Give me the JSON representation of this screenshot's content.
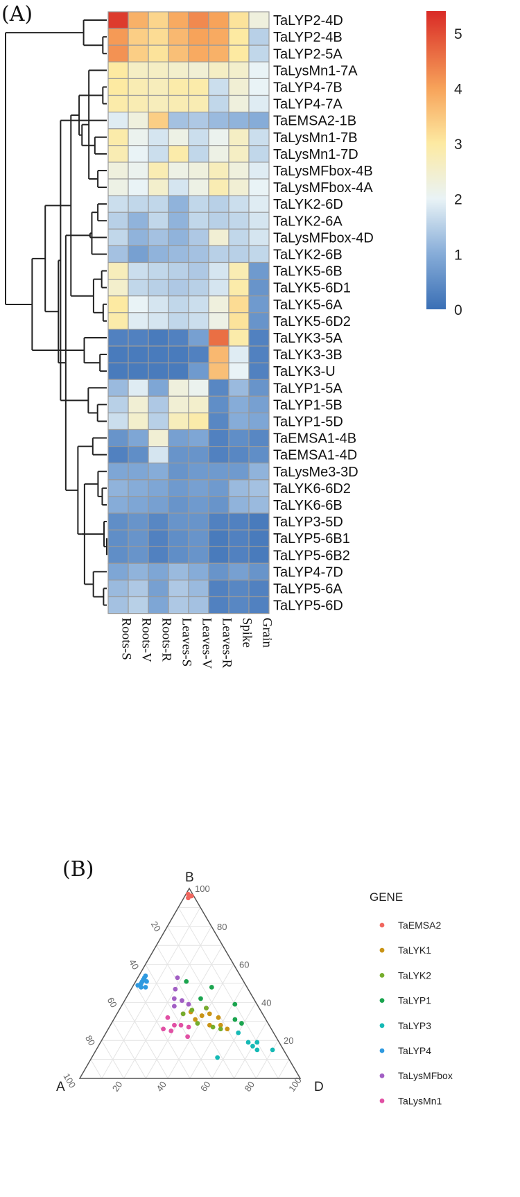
{
  "panels": {
    "a_label": "(A)",
    "b_label": "(B)"
  },
  "chart_data": [
    {
      "type": "heatmap",
      "title": "",
      "columns": [
        "Roots-S",
        "Roots-V",
        "Roots-R",
        "Leaves-S",
        "Leaves-V",
        "Leaves-R",
        "Spike",
        "Grain"
      ],
      "rows": [
        "TaLYP2-4D",
        "TaLYP2-4B",
        "TaLYP2-5A",
        "TaLysMn1-7A",
        "TaLYP4-7B",
        "TaLYP4-7A",
        "TaEMSA2-1B",
        "TaLysMn1-7B",
        "TaLysMn1-7D",
        "TaLysMFbox-4B",
        "TaLysMFbox-4A",
        "TaLYK2-6D",
        "TaLYK2-6A",
        "TaLysMFbox-4D",
        "TaLYK2-6B",
        "TaLYK5-6B",
        "TaLYK5-6D1",
        "TaLYK5-6A",
        "TaLYK5-6D2",
        "TaLYK3-5A",
        "TaLYK3-3B",
        "TaLYK3-U",
        "TaLYP1-5A",
        "TaLYP1-5B",
        "TaLYP1-5D",
        "TaEMSA1-4B",
        "TaEMSA1-4D",
        "TaLysMe3-3D",
        "TaLYK6-6D2",
        "TaLYK6-6B",
        "TaLYP3-5D",
        "TaLYP5-6B1",
        "TaLYP5-6B2",
        "TaLYP4-7D",
        "TaLYP5-6A",
        "TaLYP5-6D"
      ],
      "values": [
        [
          5.2,
          3.8,
          3.3,
          3.9,
          4.3,
          4.0,
          3.1,
          2.3
        ],
        [
          4.1,
          3.4,
          3.2,
          3.7,
          4.0,
          3.9,
          3.0,
          1.5
        ],
        [
          4.2,
          3.4,
          3.1,
          3.6,
          3.9,
          3.8,
          3.0,
          1.6
        ],
        [
          3.0,
          2.6,
          2.6,
          2.5,
          2.4,
          2.6,
          2.5,
          2.0
        ],
        [
          3.0,
          2.8,
          2.7,
          2.9,
          2.9,
          1.7,
          2.4,
          2.0
        ],
        [
          2.9,
          2.8,
          2.7,
          2.8,
          2.8,
          1.6,
          2.3,
          1.9
        ],
        [
          1.9,
          2.3,
          3.4,
          1.3,
          1.4,
          1.2,
          1.1,
          1.0
        ],
        [
          2.9,
          2.1,
          1.8,
          2.2,
          1.7,
          2.1,
          2.6,
          1.7
        ],
        [
          2.8,
          2.0,
          1.7,
          2.9,
          1.6,
          2.2,
          2.6,
          1.6
        ],
        [
          2.3,
          2.1,
          2.8,
          2.2,
          2.3,
          2.7,
          2.3,
          1.9
        ],
        [
          2.2,
          2.0,
          2.5,
          1.8,
          2.2,
          2.8,
          2.4,
          2.0
        ],
        [
          1.7,
          1.6,
          1.6,
          1.1,
          1.6,
          1.5,
          1.7,
          1.9
        ],
        [
          1.5,
          1.1,
          1.6,
          1.1,
          1.6,
          1.5,
          1.6,
          1.8
        ],
        [
          1.6,
          1.1,
          1.3,
          1.1,
          1.4,
          2.4,
          1.6,
          1.8
        ],
        [
          1.3,
          0.8,
          1.1,
          1.2,
          1.3,
          1.5,
          1.5,
          1.6
        ],
        [
          2.7,
          1.7,
          1.6,
          1.5,
          1.4,
          1.8,
          2.8,
          0.7
        ],
        [
          2.5,
          1.6,
          1.5,
          1.4,
          1.5,
          1.8,
          2.9,
          0.6
        ],
        [
          3.0,
          2.0,
          1.8,
          1.6,
          1.7,
          2.3,
          3.2,
          0.7
        ],
        [
          2.9,
          1.9,
          1.8,
          1.6,
          1.7,
          2.2,
          3.1,
          0.6
        ],
        [
          0.3,
          0.3,
          0.2,
          0.3,
          0.8,
          4.6,
          2.9,
          0.3
        ],
        [
          0.2,
          0.2,
          0.2,
          0.2,
          0.3,
          3.7,
          1.9,
          0.3
        ],
        [
          0.2,
          0.2,
          0.2,
          0.2,
          0.7,
          3.6,
          2.0,
          0.3
        ],
        [
          1.2,
          1.9,
          0.9,
          2.3,
          2.1,
          0.4,
          1.2,
          0.6
        ],
        [
          1.5,
          2.4,
          1.4,
          2.4,
          2.5,
          0.5,
          1.0,
          0.8
        ],
        [
          1.7,
          2.5,
          1.5,
          2.7,
          2.9,
          0.4,
          1.0,
          0.9
        ],
        [
          0.6,
          0.9,
          2.4,
          0.8,
          0.9,
          0.3,
          0.5,
          0.4
        ],
        [
          0.3,
          0.5,
          1.8,
          0.6,
          0.6,
          0.3,
          0.4,
          0.5
        ],
        [
          0.9,
          0.9,
          1.0,
          0.6,
          0.7,
          0.7,
          0.7,
          1.1
        ],
        [
          1.1,
          1.0,
          0.9,
          0.7,
          0.8,
          0.7,
          1.2,
          1.3
        ],
        [
          1.0,
          0.9,
          0.8,
          0.6,
          0.7,
          0.6,
          1.1,
          1.2
        ],
        [
          0.5,
          0.6,
          0.4,
          0.6,
          0.6,
          0.3,
          0.3,
          0.2
        ],
        [
          0.5,
          0.6,
          0.3,
          0.5,
          0.6,
          0.2,
          0.3,
          0.2
        ],
        [
          0.5,
          0.6,
          0.3,
          0.5,
          0.6,
          0.2,
          0.3,
          0.2
        ],
        [
          0.9,
          1.1,
          0.9,
          1.2,
          1.0,
          0.6,
          0.8,
          0.6
        ],
        [
          1.2,
          1.4,
          0.8,
          1.4,
          1.2,
          0.3,
          0.4,
          0.3
        ],
        [
          1.3,
          1.5,
          0.9,
          1.4,
          1.3,
          0.3,
          0.4,
          0.3
        ]
      ],
      "color_scale": {
        "min": 0,
        "max": 5.4,
        "ticks": [
          0,
          1,
          2,
          3,
          4,
          5
        ],
        "stops": [
          {
            "value": 0,
            "color": "#3a6fb5"
          },
          {
            "value": 1,
            "color": "#86acd8"
          },
          {
            "value": 2,
            "color": "#e9f3f6"
          },
          {
            "value": 3,
            "color": "#fdeaa2"
          },
          {
            "value": 4,
            "color": "#f7a35a"
          },
          {
            "value": 5.4,
            "color": "#d92a26"
          }
        ]
      },
      "dendrogram": "rows"
    },
    {
      "type": "scatter",
      "subtype": "ternary",
      "axes": {
        "top": "B",
        "left": "A",
        "right": "D"
      },
      "ticks": [
        20,
        40,
        60,
        80,
        100
      ],
      "legend_title": "GENE",
      "legend": [
        {
          "name": "TaEMSA2",
          "color": "#f1675f"
        },
        {
          "name": "TaLYK1",
          "color": "#c99416"
        },
        {
          "name": "TaLYK2",
          "color": "#76ad2c"
        },
        {
          "name": "TaLYP1",
          "color": "#1aa44e"
        },
        {
          "name": "TaLYP3",
          "color": "#15b9b5"
        },
        {
          "name": "TaLYP4",
          "color": "#2f9ae0"
        },
        {
          "name": "TaLysMFbox",
          "color": "#a25fc4"
        },
        {
          "name": "TaLysMn1",
          "color": "#e150a4"
        }
      ],
      "points": [
        {
          "gene": "TaEMSA2",
          "A": 2,
          "B": 97,
          "D": 1
        },
        {
          "gene": "TaEMSA2",
          "A": 3,
          "B": 95,
          "D": 2
        },
        {
          "gene": "TaEMSA2",
          "A": 1,
          "B": 96,
          "D": 3
        },
        {
          "gene": "TaLYP4",
          "A": 49,
          "B": 49,
          "D": 2
        },
        {
          "gene": "TaLYP4",
          "A": 47,
          "B": 50,
          "D": 3
        },
        {
          "gene": "TaLYP4",
          "A": 46,
          "B": 51,
          "D": 3
        },
        {
          "gene": "TaLYP4",
          "A": 44,
          "B": 53,
          "D": 3
        },
        {
          "gene": "TaLYP4",
          "A": 45,
          "B": 52,
          "D": 3
        },
        {
          "gene": "TaLYP4",
          "A": 48,
          "B": 48,
          "D": 4
        },
        {
          "gene": "TaLYP4",
          "A": 46,
          "B": 48,
          "D": 6
        },
        {
          "gene": "TaLYP4",
          "A": 44,
          "B": 51,
          "D": 5
        },
        {
          "gene": "TaLYP4",
          "A": 43,
          "B": 54,
          "D": 3
        },
        {
          "gene": "TaLysMFbox",
          "A": 29,
          "B": 53,
          "D": 18
        },
        {
          "gene": "TaLysMFbox",
          "A": 33,
          "B": 47,
          "D": 20
        },
        {
          "gene": "TaLysMFbox",
          "A": 36,
          "B": 42,
          "D": 22
        },
        {
          "gene": "TaLysMFbox",
          "A": 33,
          "B": 41,
          "D": 26
        },
        {
          "gene": "TaLysMFbox",
          "A": 31,
          "B": 39,
          "D": 30
        },
        {
          "gene": "TaLysMFbox",
          "A": 38,
          "B": 38,
          "D": 24
        },
        {
          "gene": "TaLysMFbox",
          "A": 24,
          "B": 37,
          "D": 39
        },
        {
          "gene": "TaLysMn1",
          "A": 49,
          "B": 26,
          "D": 25
        },
        {
          "gene": "TaLysMn1",
          "A": 46,
          "B": 25,
          "D": 29
        },
        {
          "gene": "TaLysMn1",
          "A": 43,
          "B": 28,
          "D": 29
        },
        {
          "gene": "TaLysMn1",
          "A": 40,
          "B": 28,
          "D": 32
        },
        {
          "gene": "TaLysMn1",
          "A": 37,
          "B": 27,
          "D": 36
        },
        {
          "gene": "TaLysMn1",
          "A": 44,
          "B": 32,
          "D": 24
        },
        {
          "gene": "TaLysMn1",
          "A": 36,
          "B": 34,
          "D": 30
        },
        {
          "gene": "TaLysMn1",
          "A": 40,
          "B": 22,
          "D": 38
        },
        {
          "gene": "TaLYK1",
          "A": 32,
          "B": 31,
          "D": 37
        },
        {
          "gene": "TaLYK1",
          "A": 28,
          "B": 33,
          "D": 39
        },
        {
          "gene": "TaLYK1",
          "A": 24,
          "B": 34,
          "D": 42
        },
        {
          "gene": "TaLYK1",
          "A": 27,
          "B": 28,
          "D": 45
        },
        {
          "gene": "TaLYK1",
          "A": 21,
          "B": 32,
          "D": 47
        },
        {
          "gene": "TaLYK1",
          "A": 22,
          "B": 28,
          "D": 50
        },
        {
          "gene": "TaLYK1",
          "A": 20,
          "B": 26,
          "D": 54
        },
        {
          "gene": "TaLYK1",
          "A": 32,
          "B": 35,
          "D": 33
        },
        {
          "gene": "TaLYK2",
          "A": 32,
          "B": 29,
          "D": 39
        },
        {
          "gene": "TaLYK2",
          "A": 26,
          "B": 27,
          "D": 47
        },
        {
          "gene": "TaLYK2",
          "A": 23,
          "B": 26,
          "D": 51
        },
        {
          "gene": "TaLYK2",
          "A": 31,
          "B": 36,
          "D": 33
        },
        {
          "gene": "TaLYK2",
          "A": 36,
          "B": 34,
          "D": 30
        },
        {
          "gene": "TaLYK2",
          "A": 24,
          "B": 37,
          "D": 39
        },
        {
          "gene": "TaLYP1",
          "A": 26,
          "B": 51,
          "D": 23
        },
        {
          "gene": "TaLYP1",
          "A": 16,
          "B": 48,
          "D": 36
        },
        {
          "gene": "TaLYP1",
          "A": 24,
          "B": 42,
          "D": 34
        },
        {
          "gene": "TaLYP1",
          "A": 10,
          "B": 39,
          "D": 51
        },
        {
          "gene": "TaLYP1",
          "A": 14,
          "B": 31,
          "D": 55
        },
        {
          "gene": "TaLYP1",
          "A": 12,
          "B": 29,
          "D": 59
        },
        {
          "gene": "TaLYP3",
          "A": 16,
          "B": 24,
          "D": 60
        },
        {
          "gene": "TaLYP3",
          "A": 14,
          "B": 19,
          "D": 67
        },
        {
          "gene": "TaLYP3",
          "A": 13,
          "B": 17,
          "D": 70
        },
        {
          "gene": "TaLYP3",
          "A": 10,
          "B": 19,
          "D": 71
        },
        {
          "gene": "TaLYP3",
          "A": 5,
          "B": 15,
          "D": 80
        },
        {
          "gene": "TaLYP3",
          "A": 32,
          "B": 11,
          "D": 57
        },
        {
          "gene": "TaLYP3",
          "A": 12,
          "B": 15,
          "D": 73
        }
      ]
    }
  ]
}
